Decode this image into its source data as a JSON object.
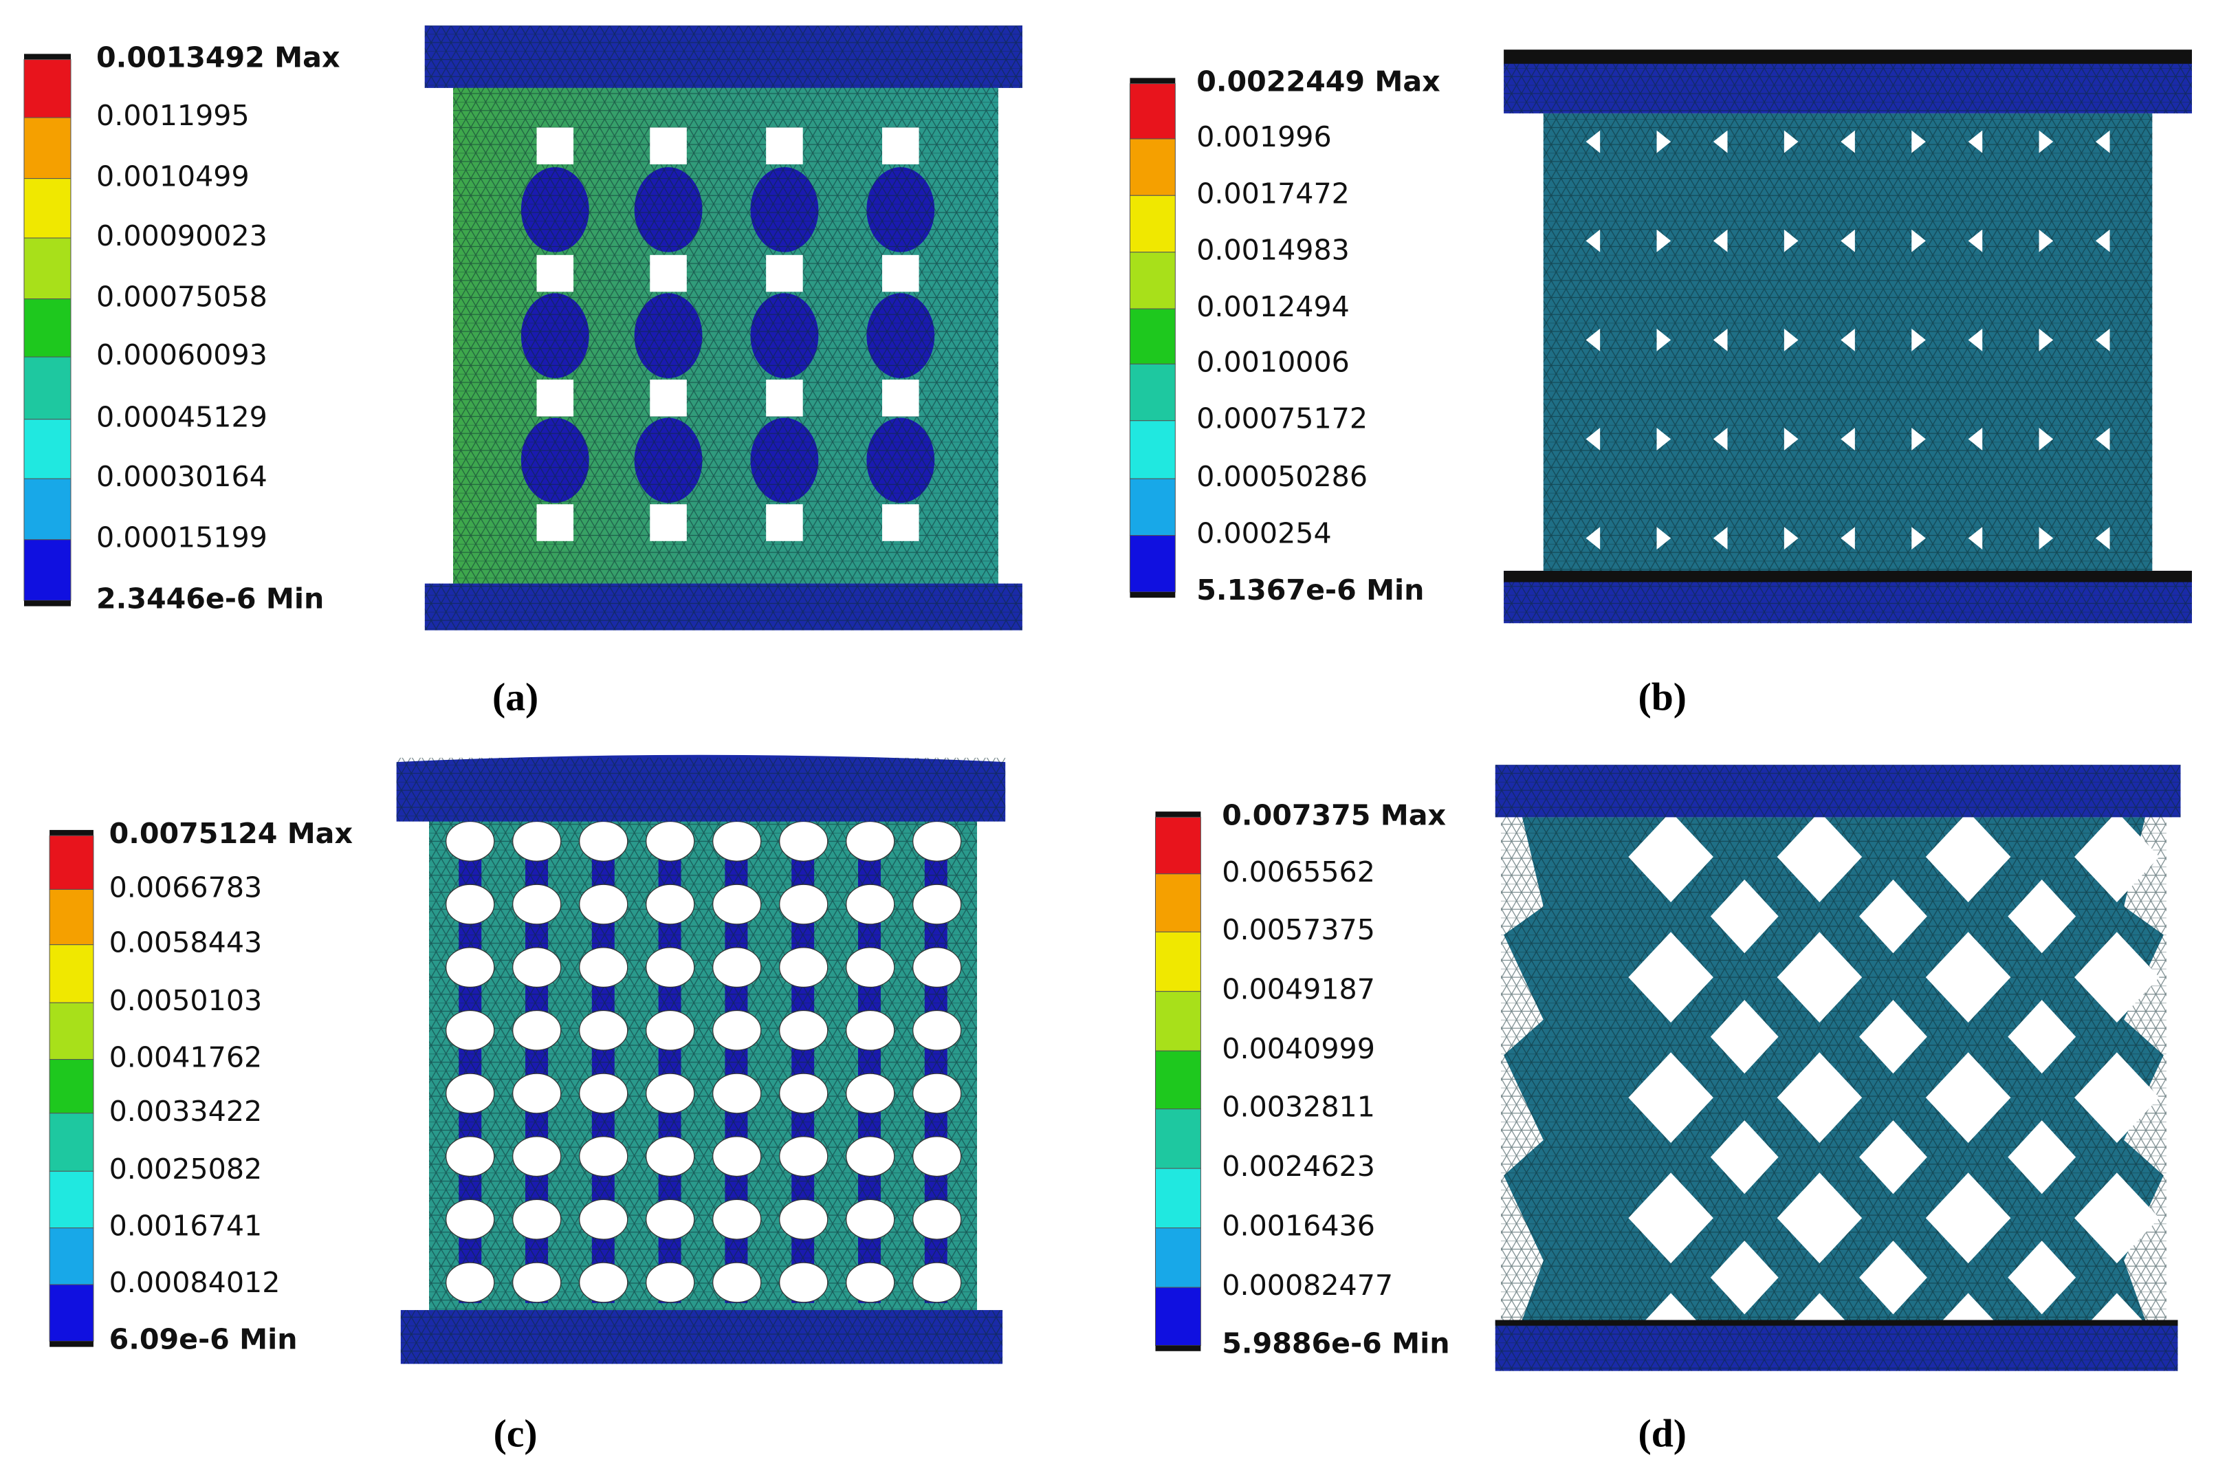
{
  "panels": [
    {
      "legend": [
        "0.0013492 Max",
        "0.0011995",
        "0.0010499",
        "0.00090023",
        "0.00075058",
        "0.00060093",
        "0.00045129",
        "0.00030164",
        "0.00015199",
        "2.3446e-6 Min"
      ],
      "caption": "(a)"
    },
    {
      "legend": [
        "0.0022449 Max",
        "0.001996",
        "0.0017472",
        "0.0014983",
        "0.0012494",
        "0.0010006",
        "0.00075172",
        "0.00050286",
        "0.000254",
        "5.1367e-6 Min"
      ],
      "caption": "(b)"
    },
    {
      "legend": [
        "0.0075124 Max",
        "0.0066783",
        "0.0058443",
        "0.0050103",
        "0.0041762",
        "0.0033422",
        "0.0025082",
        "0.0016741",
        "0.00084012",
        "6.09e-6 Min"
      ],
      "caption": "(c)"
    },
    {
      "legend": [
        "0.007375 Max",
        "0.0065562",
        "0.0057375",
        "0.0049187",
        "0.0040999",
        "0.0032811",
        "0.0024623",
        "0.0016436",
        "0.00082477",
        "5.9886e-6 Min"
      ],
      "caption": "(d)"
    }
  ]
}
